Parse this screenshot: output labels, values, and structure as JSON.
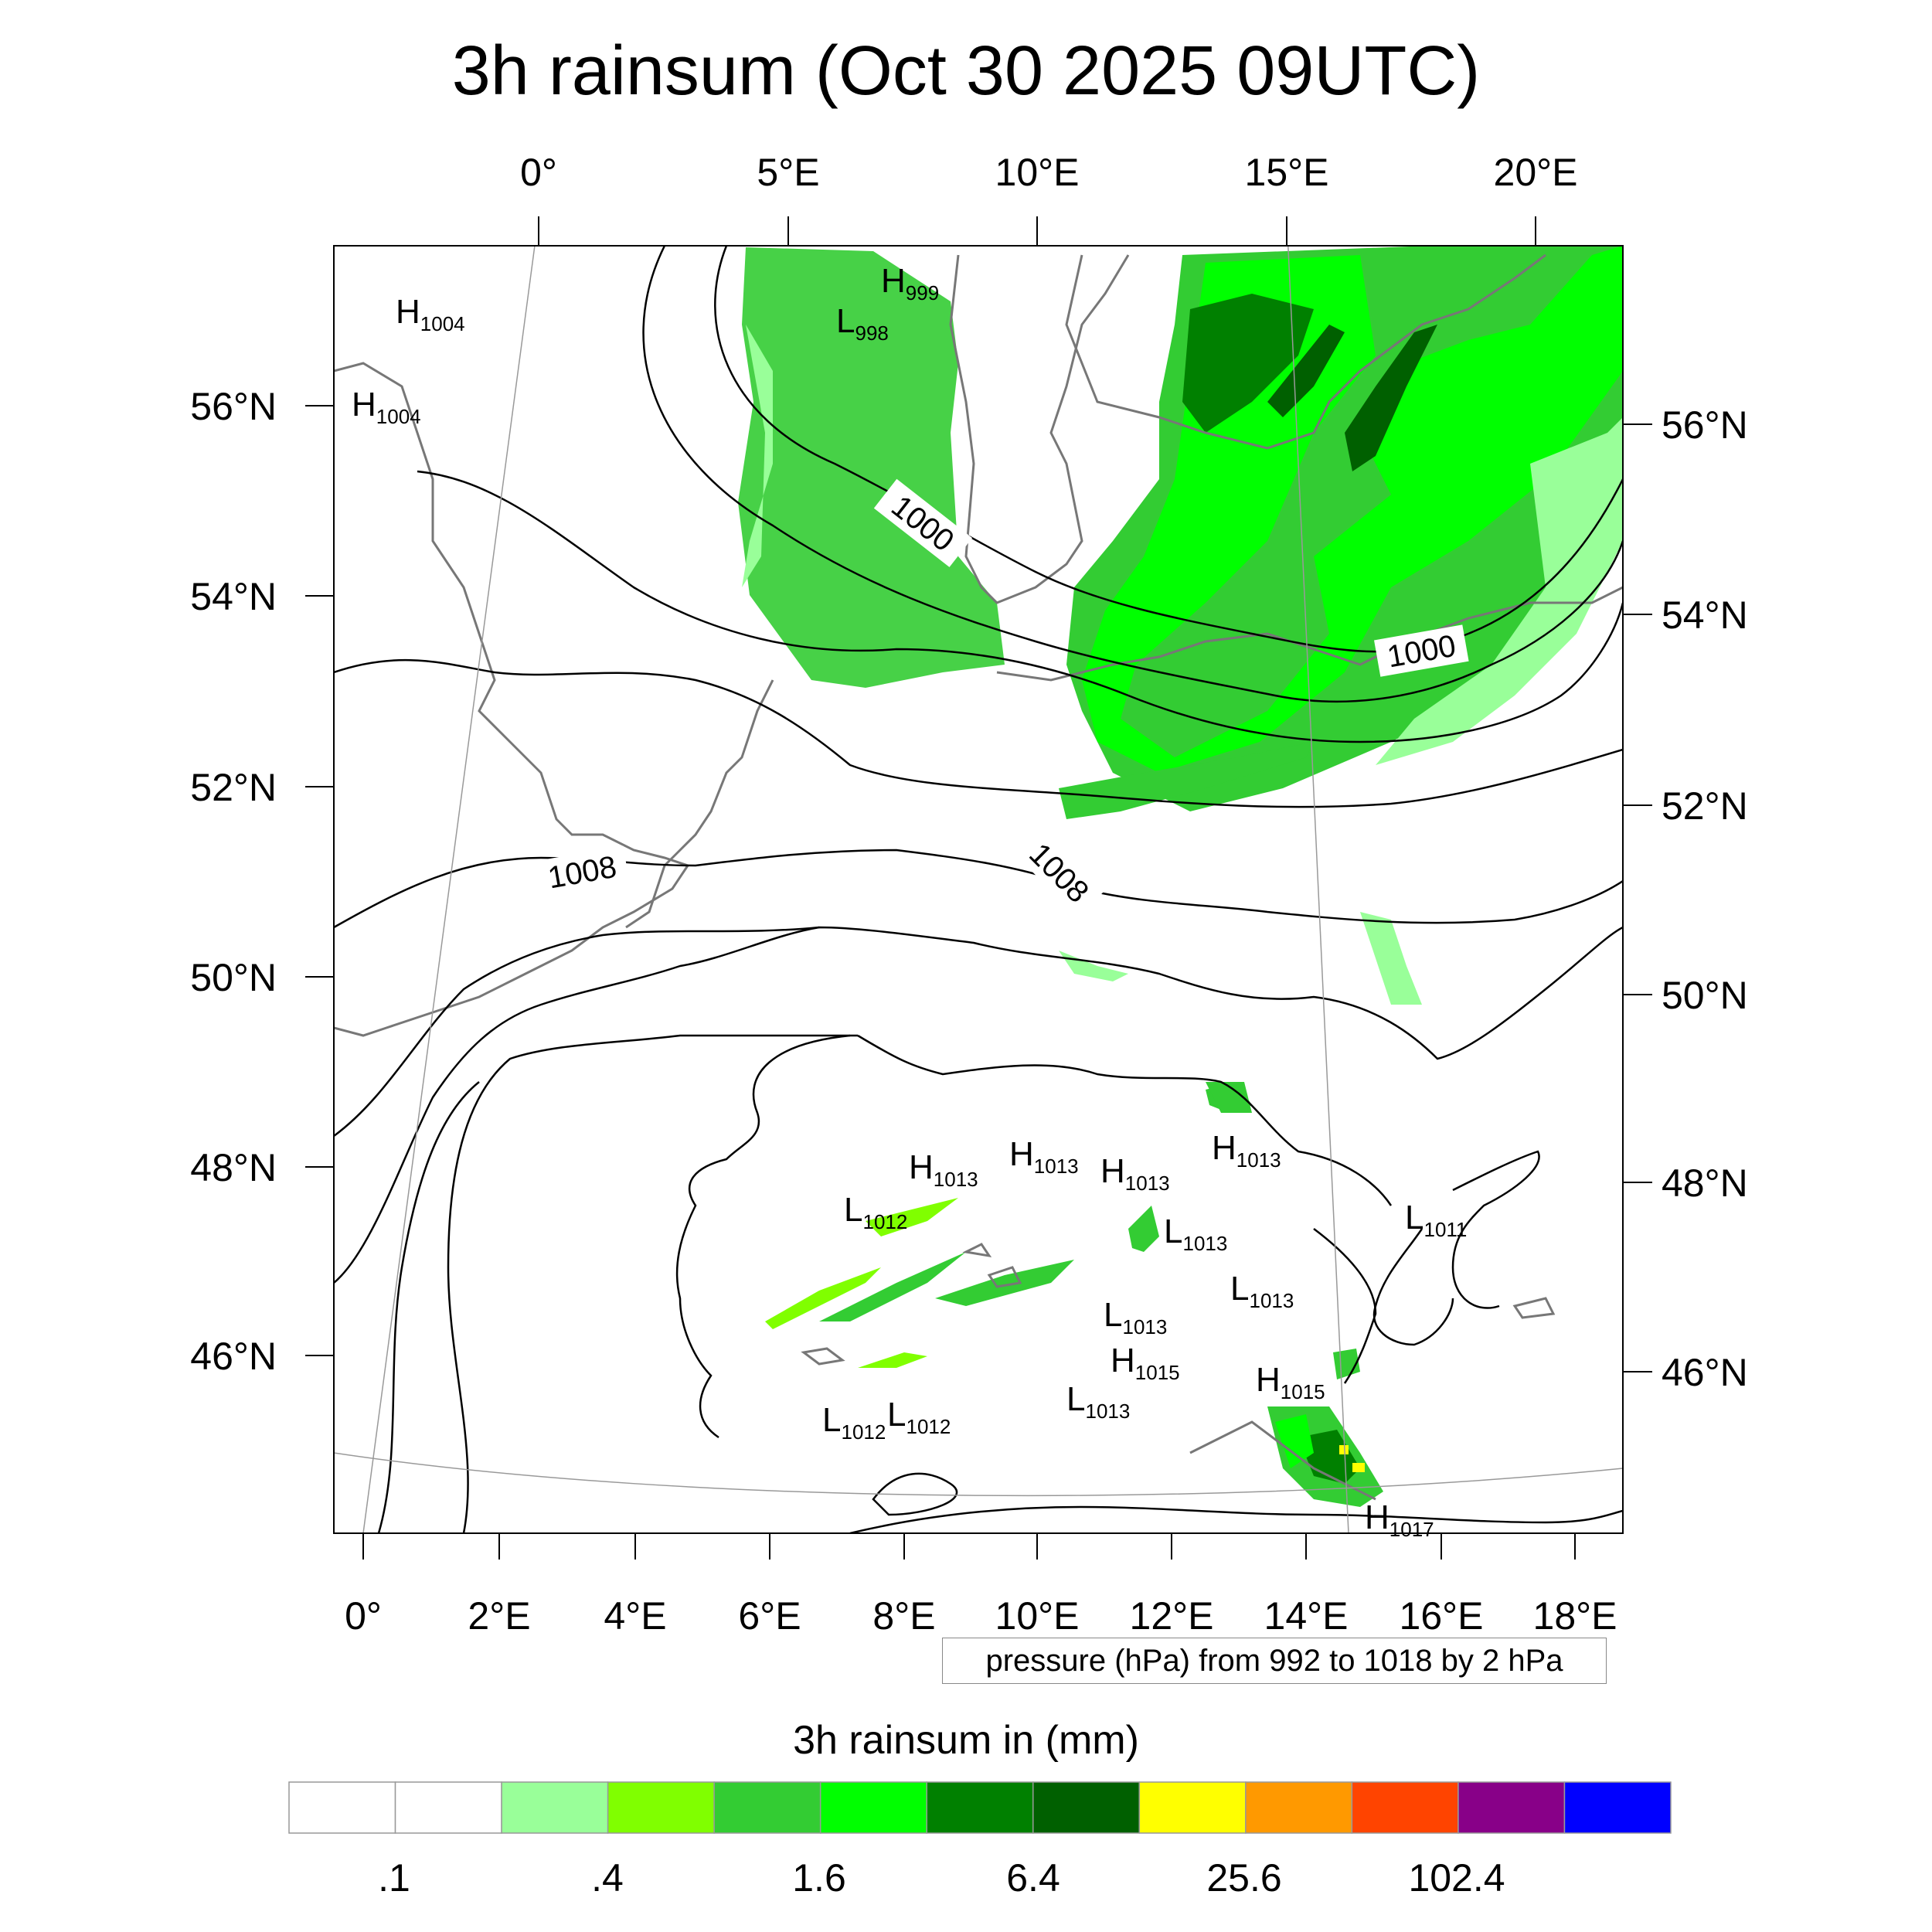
{
  "title": "3h rainsum (Oct 30 2025 09UTC)",
  "top_lon_labels": [
    "0°",
    "5°E",
    "10°E",
    "15°E",
    "20°E"
  ],
  "bottom_lon_labels": [
    "0°",
    "2°E",
    "4°E",
    "6°E",
    "8°E",
    "10°E",
    "12°E",
    "14°E",
    "16°E",
    "18°E"
  ],
  "left_lat_labels": [
    "56°N",
    "54°N",
    "52°N",
    "50°N",
    "48°N",
    "46°N"
  ],
  "right_lat_labels": [
    "56°N",
    "54°N",
    "52°N",
    "50°N",
    "48°N",
    "46°N"
  ],
  "contour_labels": [
    "1000",
    "1000",
    "1008",
    "1008"
  ],
  "pressure_centers": [
    {
      "type": "H",
      "value": "1004"
    },
    {
      "type": "H",
      "value": "1004"
    },
    {
      "type": "H",
      "value": "999"
    },
    {
      "type": "L",
      "value": "998"
    },
    {
      "type": "H",
      "value": "1013"
    },
    {
      "type": "H",
      "value": "1013"
    },
    {
      "type": "H",
      "value": "1013"
    },
    {
      "type": "H",
      "value": "1013"
    },
    {
      "type": "L",
      "value": "1012"
    },
    {
      "type": "L",
      "value": "1013"
    },
    {
      "type": "L",
      "value": "1011"
    },
    {
      "type": "L",
      "value": "1013"
    },
    {
      "type": "L",
      "value": "1013"
    },
    {
      "type": "H",
      "value": "1015"
    },
    {
      "type": "H",
      "value": "1015"
    },
    {
      "type": "L",
      "value": "1012"
    },
    {
      "type": "L",
      "value": "1012"
    },
    {
      "type": "L",
      "value": "1013"
    },
    {
      "type": "H",
      "value": "1017"
    }
  ],
  "pressure_note": "pressure (hPa) from 992 to 1018 by 2 hPa",
  "colorbar": {
    "title": "3h rainsum in (mm)",
    "colors": [
      "#ffffff",
      "#ffffff",
      "#99ff99",
      "#80ff00",
      "#33cc33",
      "#00ff00",
      "#008000",
      "#006000",
      "#ffff00",
      "#ff9900",
      "#ff4400",
      "#880088",
      "#0000ff"
    ],
    "labels": [
      ".1",
      ".4",
      "1.6",
      "6.4",
      "25.6",
      "102.4"
    ]
  }
}
